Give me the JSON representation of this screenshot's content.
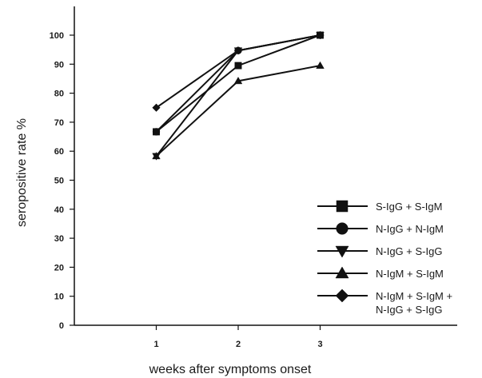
{
  "chart_data": {
    "type": "line",
    "title": "",
    "xlabel": "weeks after symptoms onset",
    "ylabel": "seropositive rate %",
    "x": [
      1,
      2,
      3
    ],
    "x_ticks": [
      "1",
      "2",
      "3"
    ],
    "xlim": [
      0,
      3.6
    ],
    "ylim": [
      0,
      100
    ],
    "y_ticks": [
      "0",
      "10",
      "20",
      "30",
      "40",
      "50",
      "60",
      "70",
      "80",
      "90",
      "100"
    ],
    "grid": false,
    "legend_position": "bottom-right",
    "line_color": "#111111",
    "series": [
      {
        "name": "S-IgG + S-IgM",
        "marker": "square",
        "values": [
          66.7,
          89.5,
          100
        ]
      },
      {
        "name": "N-IgG + N-IgM",
        "marker": "circle",
        "values": [
          66.7,
          94.7,
          100
        ]
      },
      {
        "name": "N-IgG + S-IgG",
        "marker": "triangle-down",
        "values": [
          58.3,
          94.7,
          100
        ]
      },
      {
        "name": "N-IgM + S-IgM",
        "marker": "triangle-up",
        "values": [
          58.3,
          84.2,
          89.5
        ]
      },
      {
        "name": "N-IgM + S-IgM + N-IgG + S-IgG",
        "legend_lines": [
          "N-IgM + S-IgM +",
          "N-IgG + S-IgG"
        ],
        "marker": "diamond",
        "values": [
          75,
          94.7,
          100
        ]
      }
    ]
  }
}
